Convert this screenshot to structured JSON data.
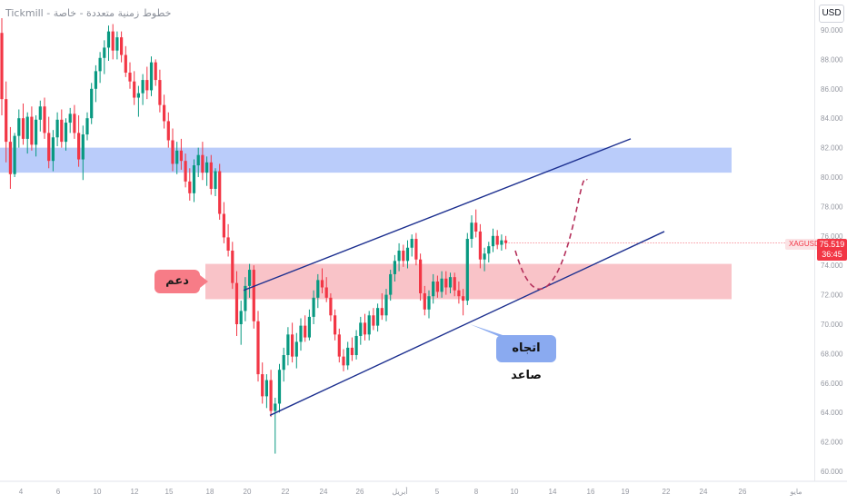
{
  "header": {
    "watermark": "Tickmill - خطوط زمنية متعددة - خاصة"
  },
  "price_axis": {
    "currency": "USD",
    "symbol": "XAGUSD",
    "last_price": "75.519",
    "countdown": "36:45"
  },
  "annotations": {
    "support_label": "دعم",
    "trend_label": "اتجاه صاعد"
  },
  "colors": {
    "up": "#089981",
    "down": "#f23645",
    "resistance_zone": "#aec3f9",
    "support_zone": "#f8b8be",
    "channel": "#1c2f8f",
    "projection": "#b5305b"
  },
  "chart_data": {
    "type": "candlestick",
    "symbol": "XAGUSD",
    "currency": "USD",
    "ylim": [
      60,
      92
    ],
    "y_ticks": [
      60,
      62,
      64,
      66,
      68,
      70,
      72,
      74,
      76,
      78,
      80,
      82,
      84,
      86,
      88,
      90
    ],
    "y_tick_labels": [
      "60.000",
      "62.000",
      "64.000",
      "66.000",
      "68.000",
      "70.000",
      "72.000",
      "74.000",
      "76.000",
      "78.000",
      "80.000",
      "82.000",
      "84.000",
      "86.000",
      "88.000",
      "90.000"
    ],
    "x_ticks": [
      "4",
      "6",
      "10",
      "12",
      "15",
      "18",
      "20",
      "22",
      "24",
      "26",
      "29",
      "أبريل",
      "5",
      "8",
      "10",
      "14",
      "16",
      "19",
      "22",
      "24",
      "26",
      "28",
      "مايو"
    ],
    "last_price": 75.519,
    "zones": [
      {
        "name": "resistance",
        "from": 80.3,
        "to": 82.0
      },
      {
        "name": "support",
        "from": 71.7,
        "to": 74.1
      }
    ],
    "channel": {
      "upper": [
        [
          72.0,
          82.6
        ]
      ],
      "lower": [
        [
          63.8,
          76.3
        ]
      ]
    },
    "candles": [
      [
        89.8,
        90.8,
        84.2,
        85.3
      ],
      [
        85.3,
        86.5,
        81.0,
        82.4
      ],
      [
        82.4,
        83.4,
        79.2,
        80.2
      ],
      [
        80.2,
        83.0,
        80.0,
        82.8
      ],
      [
        82.8,
        84.6,
        82.0,
        84.0
      ],
      [
        84.0,
        85.0,
        82.2,
        82.6
      ],
      [
        82.6,
        84.4,
        81.6,
        84.1
      ],
      [
        84.1,
        84.8,
        81.8,
        82.2
      ],
      [
        82.2,
        84.2,
        81.4,
        83.9
      ],
      [
        83.9,
        85.2,
        83.1,
        84.8
      ],
      [
        84.8,
        85.4,
        82.6,
        83.0
      ],
      [
        83.0,
        84.1,
        80.6,
        81.1
      ],
      [
        81.1,
        83.2,
        80.4,
        82.7
      ],
      [
        82.7,
        84.4,
        82.1,
        83.9
      ],
      [
        83.9,
        84.6,
        82.0,
        82.4
      ],
      [
        82.4,
        84.0,
        81.8,
        83.7
      ],
      [
        83.7,
        84.7,
        83.0,
        84.3
      ],
      [
        84.3,
        84.9,
        82.6,
        83.0
      ],
      [
        83.0,
        84.2,
        80.7,
        81.2
      ],
      [
        81.2,
        83.5,
        79.8,
        82.9
      ],
      [
        82.9,
        84.4,
        82.5,
        84.0
      ],
      [
        84.0,
        86.4,
        83.6,
        86.0
      ],
      [
        86.0,
        87.6,
        85.1,
        87.2
      ],
      [
        87.2,
        88.5,
        86.4,
        88.1
      ],
      [
        88.1,
        89.3,
        87.0,
        88.8
      ],
      [
        88.8,
        90.3,
        87.9,
        89.9
      ],
      [
        89.9,
        90.4,
        88.0,
        88.6
      ],
      [
        88.6,
        89.9,
        88.0,
        89.5
      ],
      [
        89.5,
        89.9,
        87.8,
        88.3
      ],
      [
        88.3,
        88.9,
        86.8,
        87.1
      ],
      [
        87.1,
        87.8,
        86.0,
        86.5
      ],
      [
        86.5,
        87.2,
        84.9,
        85.4
      ],
      [
        85.4,
        86.2,
        84.1,
        85.7
      ],
      [
        85.7,
        87.0,
        84.9,
        86.6
      ],
      [
        86.6,
        87.5,
        85.3,
        85.9
      ],
      [
        85.9,
        88.2,
        85.5,
        87.8
      ],
      [
        87.8,
        88.0,
        86.2,
        86.6
      ],
      [
        86.6,
        87.3,
        84.4,
        84.9
      ],
      [
        84.9,
        85.6,
        83.3,
        83.8
      ],
      [
        83.8,
        84.4,
        82.0,
        82.5
      ],
      [
        82.5,
        83.3,
        80.4,
        80.9
      ],
      [
        80.9,
        82.4,
        80.2,
        81.8
      ],
      [
        81.8,
        82.6,
        80.5,
        81.1
      ],
      [
        81.1,
        81.6,
        79.3,
        79.7
      ],
      [
        79.7,
        80.6,
        78.4,
        78.9
      ],
      [
        78.9,
        81.2,
        78.3,
        80.8
      ],
      [
        80.8,
        82.0,
        80.0,
        81.5
      ],
      [
        81.5,
        82.4,
        79.8,
        80.3
      ],
      [
        80.3,
        81.4,
        79.4,
        81.0
      ],
      [
        81.0,
        81.5,
        78.8,
        79.2
      ],
      [
        79.2,
        80.6,
        78.7,
        80.4
      ],
      [
        80.4,
        80.9,
        77.1,
        77.5
      ],
      [
        77.5,
        78.3,
        75.5,
        75.9
      ],
      [
        75.9,
        76.8,
        74.6,
        75.0
      ],
      [
        75.0,
        75.6,
        72.4,
        72.8
      ],
      [
        72.8,
        73.6,
        69.2,
        70.0
      ],
      [
        70.0,
        71.6,
        68.6,
        70.9
      ],
      [
        70.9,
        73.2,
        70.2,
        72.6
      ],
      [
        72.6,
        74.1,
        71.8,
        73.7
      ],
      [
        73.7,
        74.0,
        69.7,
        70.2
      ],
      [
        70.2,
        70.9,
        66.1,
        66.6
      ],
      [
        66.6,
        67.4,
        64.6,
        65.1
      ],
      [
        65.1,
        66.6,
        64.3,
        66.2
      ],
      [
        66.2,
        66.9,
        63.7,
        64.1
      ],
      [
        64.1,
        65.0,
        61.2,
        64.6
      ],
      [
        64.6,
        67.3,
        64.0,
        66.9
      ],
      [
        66.9,
        68.4,
        66.1,
        67.9
      ],
      [
        67.9,
        69.8,
        67.2,
        69.3
      ],
      [
        69.3,
        70.1,
        67.4,
        67.8
      ],
      [
        67.8,
        69.4,
        67.0,
        68.8
      ],
      [
        68.8,
        70.4,
        68.2,
        69.9
      ],
      [
        69.9,
        70.6,
        68.8,
        69.1
      ],
      [
        69.1,
        71.0,
        68.9,
        70.5
      ],
      [
        70.5,
        72.3,
        70.0,
        71.8
      ],
      [
        71.8,
        73.4,
        71.1,
        73.0
      ],
      [
        73.0,
        73.8,
        72.1,
        72.5
      ],
      [
        72.5,
        73.2,
        71.5,
        71.8
      ],
      [
        71.8,
        72.1,
        70.2,
        70.6
      ],
      [
        70.6,
        71.0,
        68.9,
        69.3
      ],
      [
        69.3,
        69.7,
        67.4,
        67.8
      ],
      [
        67.8,
        68.3,
        66.8,
        67.2
      ],
      [
        67.2,
        68.8,
        66.9,
        68.4
      ],
      [
        68.4,
        69.1,
        67.5,
        67.9
      ],
      [
        67.9,
        69.6,
        67.6,
        69.2
      ],
      [
        69.2,
        70.5,
        68.6,
        70.1
      ],
      [
        70.1,
        70.7,
        68.9,
        69.3
      ],
      [
        69.3,
        70.9,
        68.9,
        70.6
      ],
      [
        70.6,
        71.1,
        69.6,
        69.9
      ],
      [
        69.9,
        71.4,
        69.5,
        71.1
      ],
      [
        71.1,
        72.1,
        70.3,
        70.6
      ],
      [
        70.6,
        72.4,
        70.2,
        72.0
      ],
      [
        72.0,
        73.7,
        71.6,
        73.4
      ],
      [
        73.4,
        74.7,
        72.9,
        74.3
      ],
      [
        74.3,
        75.5,
        73.6,
        75.0
      ],
      [
        75.0,
        75.4,
        73.9,
        74.3
      ],
      [
        74.3,
        75.7,
        73.8,
        75.2
      ],
      [
        75.2,
        76.1,
        74.6,
        75.8
      ],
      [
        75.8,
        76.2,
        74.0,
        74.4
      ],
      [
        74.4,
        74.8,
        71.6,
        72.1
      ],
      [
        72.1,
        72.6,
        70.6,
        71.0
      ],
      [
        71.0,
        72.3,
        70.4,
        71.9
      ],
      [
        71.9,
        73.4,
        71.4,
        72.9
      ],
      [
        72.9,
        73.3,
        71.8,
        72.2
      ],
      [
        72.2,
        73.6,
        71.8,
        73.1
      ],
      [
        73.1,
        73.6,
        72.0,
        72.5
      ],
      [
        72.5,
        73.5,
        72.1,
        73.2
      ],
      [
        73.2,
        73.5,
        71.9,
        72.3
      ],
      [
        72.3,
        72.9,
        71.4,
        71.9
      ],
      [
        71.9,
        72.4,
        70.6,
        71.6
      ],
      [
        71.6,
        76.2,
        71.3,
        75.8
      ],
      [
        75.8,
        77.4,
        75.2,
        76.9
      ],
      [
        76.9,
        77.8,
        75.9,
        76.3
      ],
      [
        76.3,
        76.8,
        73.8,
        74.4
      ],
      [
        74.4,
        75.2,
        73.6,
        74.8
      ],
      [
        74.8,
        75.6,
        74.2,
        75.3
      ],
      [
        75.3,
        76.5,
        74.9,
        76.0
      ],
      [
        76.0,
        76.4,
        75.1,
        75.4
      ],
      [
        75.4,
        76.1,
        75.0,
        75.7
      ],
      [
        75.7,
        76.0,
        75.1,
        75.519
      ]
    ]
  }
}
